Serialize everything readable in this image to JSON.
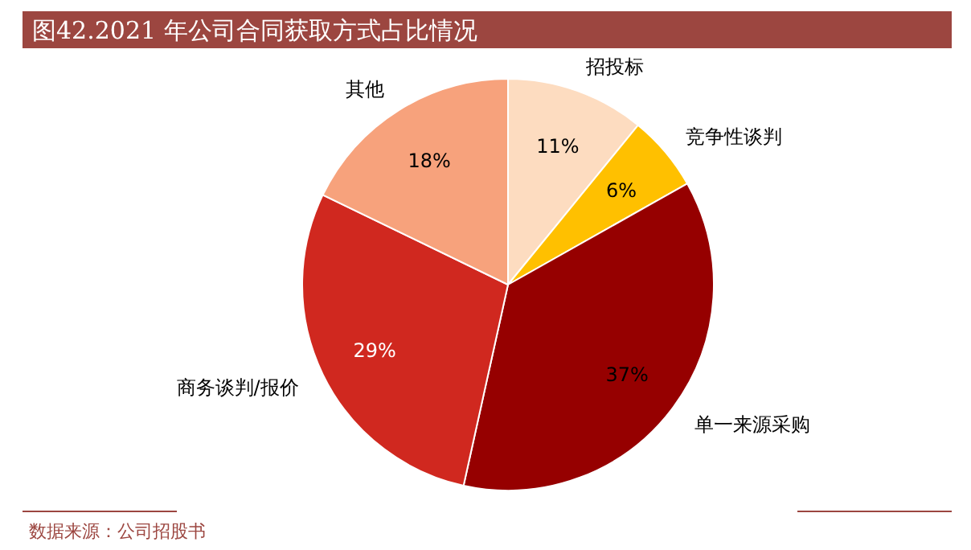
{
  "chart_data": {
    "type": "pie",
    "title": "图42.2021 年公司合同获取方式占比情况",
    "categories": [
      "招投标",
      "竞争性谈判",
      "单一来源采购",
      "商务谈判/报价",
      "其他"
    ],
    "values": [
      11,
      6,
      37,
      29,
      18
    ],
    "colors": [
      "#fddcc0",
      "#ffc000",
      "#960000",
      "#d0281f",
      "#f7a27c"
    ],
    "value_labels": [
      "11%",
      "6%",
      "37%",
      "29%",
      "18%"
    ],
    "annotations": [
      "数据来源：公司招股书"
    ]
  }
}
